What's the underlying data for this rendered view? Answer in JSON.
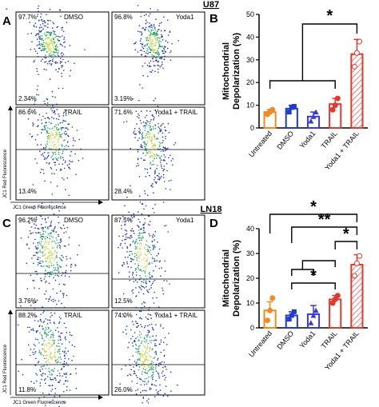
{
  "colors": {
    "untreated": "#f08a24",
    "dmso": "#1f3bd1",
    "yoda1": "#3a3ad6",
    "trail": "#e0392d",
    "yoda1_trail": "#e0392d"
  },
  "u87": {
    "title": "U87",
    "panel_a": {
      "letter": "A",
      "plots": [
        {
          "label": "DMSO",
          "upper_pct": "97.7%",
          "lower_pct": "2.34%"
        },
        {
          "label": "Yoda1",
          "upper_pct": "96.8%",
          "lower_pct": "3.19%"
        },
        {
          "label": "TRAIL",
          "upper_pct": "86.6%",
          "lower_pct": "13.4%"
        },
        {
          "label": "Yoda1 + TRAIL",
          "upper_pct": "71.6%",
          "lower_pct": "28.4%"
        }
      ],
      "y_axis_label": "JC1 Red Fluorescence",
      "x_axis_label": "JC1 Green Fluorescence"
    },
    "panel_b_letter": "B"
  },
  "ln18": {
    "title": "LN18",
    "panel_c": {
      "letter": "C",
      "plots": [
        {
          "label": "DMSO",
          "upper_pct": "96.2%",
          "lower_pct": "3.76%"
        },
        {
          "label": "Yoda1",
          "upper_pct": "87.5%",
          "lower_pct": "12.5%"
        },
        {
          "label": "TRAIL",
          "upper_pct": "88.2%",
          "lower_pct": "11.8%"
        },
        {
          "label": "Yoda1 + TRAIL",
          "upper_pct": "74.0%",
          "lower_pct": "26.0%"
        }
      ],
      "y_axis_label": "JC1 Red Fluorescence",
      "x_axis_label": "JC1 Green Fluorescence"
    },
    "panel_d_letter": "D"
  },
  "chart_data": [
    {
      "type": "bar",
      "panel": "B",
      "cell_line": "U87",
      "ylabel": "Mitochondrial Depolarization (%)",
      "ylim": [
        0,
        50
      ],
      "yticks": [
        "0",
        "10",
        "20",
        "30",
        "40",
        "50"
      ],
      "categories": [
        "Untreated",
        "DMSO",
        "Yoda1",
        "TRAIL",
        "Yoda1 + TRAIL"
      ],
      "values": [
        7,
        8.5,
        5,
        10.5,
        32.5
      ],
      "errors": [
        1.2,
        1.5,
        2.0,
        2.5,
        6.5
      ],
      "points": [
        [
          6,
          7,
          8
        ],
        [
          7,
          9,
          9.5
        ],
        [
          3,
          5,
          7
        ],
        [
          8,
          10,
          13
        ],
        [
          27,
          33,
          38
        ]
      ],
      "significance": [
        {
          "label": "*",
          "group": [
            0,
            1,
            2,
            3
          ],
          "to": 4
        }
      ]
    },
    {
      "type": "bar",
      "panel": "D",
      "cell_line": "LN18",
      "ylabel": "Mitochondrial Depolarization (%)",
      "ylim": [
        0,
        40
      ],
      "yticks": [
        "0",
        "10",
        "20",
        "30",
        "40"
      ],
      "categories": [
        "Untreated",
        "DMSO",
        "Yoda1",
        "TRAIL",
        "Yoda1 + TRAIL"
      ],
      "values": [
        7,
        5,
        5.5,
        11.5,
        25.5
      ],
      "errors": [
        3.5,
        1.5,
        3.5,
        1.5,
        4.0
      ],
      "points": [
        [
          3,
          7,
          12
        ],
        [
          3.5,
          5,
          6.5
        ],
        [
          2,
          5,
          7
        ],
        [
          10,
          11.5,
          13
        ],
        [
          21,
          26,
          29
        ]
      ],
      "significance": [
        {
          "label": "*",
          "from": 0,
          "to": 4
        },
        {
          "label": "**",
          "from": 1,
          "to": 4
        },
        {
          "label": "*",
          "from": 3,
          "to": 4
        },
        {
          "label": "",
          "group": [
            1,
            2
          ],
          "to": 3
        },
        {
          "label": "*",
          "from": 1,
          "to": 3
        }
      ]
    }
  ]
}
